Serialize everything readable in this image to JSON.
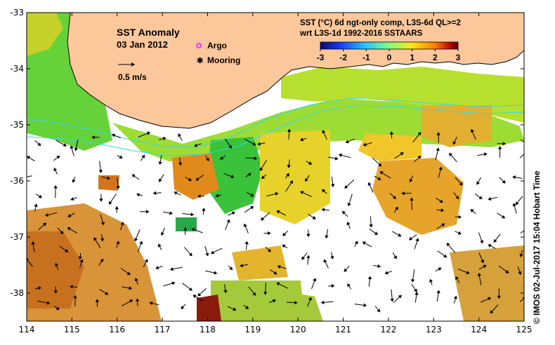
{
  "title": "SST Anomaly",
  "date": "03 Jan 2012",
  "legend_markers": {
    "argo": "Argo",
    "mooring": "Mooring"
  },
  "velocity_scale_label": "0.5 m/s",
  "product_line1": "SST (°C) 6d ngt-only comp, L3S-6d QL>=2",
  "product_line2": "wrt L3S-1d 1992-2016 SSTAARS",
  "colorbar": {
    "ticks": [
      "-3",
      "-2",
      "-1",
      "0",
      "1",
      "2",
      "3"
    ],
    "colors": [
      "#08086b",
      "#1a3cff",
      "#25c8ff",
      "#7fff7f",
      "#ffe61a",
      "#ff8000",
      "#b00000",
      "#5a0000"
    ]
  },
  "axes": {
    "x_ticks": [
      "114",
      "115",
      "116",
      "117",
      "118",
      "119",
      "120",
      "121",
      "122",
      "123",
      "124",
      "125"
    ],
    "y_ticks": [
      "-33",
      "-34",
      "-35",
      "-36",
      "-37",
      "-38"
    ],
    "x_range": [
      114,
      125
    ],
    "y_range": [
      -38.5,
      -33
    ]
  },
  "credit": "© IMOS 02-Jul-2017 15:04 Hobart Time",
  "colors": {
    "land": "#fbc79b",
    "coast_line": "#000000",
    "isobath": "#35d6e8",
    "argo": "#ff33ff",
    "mooring": "#000000"
  }
}
